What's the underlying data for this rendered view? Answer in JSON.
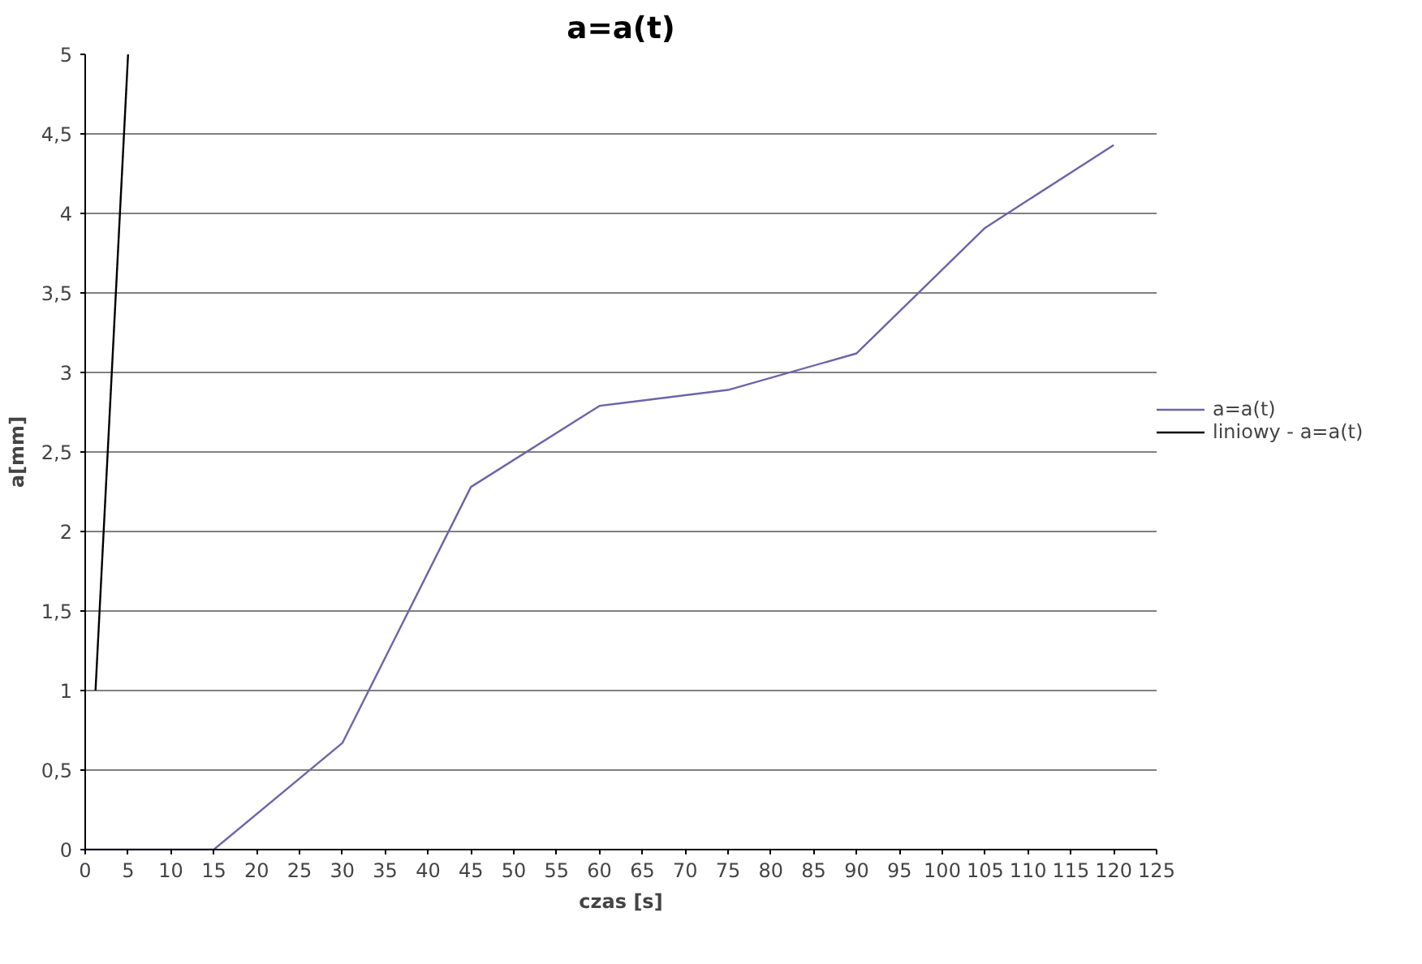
{
  "chart_data": {
    "type": "line",
    "title": "a=a(t)",
    "xlabel": "czas [s]",
    "ylabel": "a[mm]",
    "series": [
      {
        "name": "a=a(t)",
        "color": "#6c64a8",
        "x": [
          0,
          15,
          30,
          45,
          60,
          75,
          90,
          105,
          120
        ],
        "values": [
          0,
          0,
          0.67,
          2.28,
          2.79,
          2.89,
          3.12,
          3.91,
          4.43
        ]
      },
      {
        "name": "liniowy - a=a(t)",
        "color": "#000000",
        "x": [
          1.2,
          5
        ],
        "values": [
          1,
          5
        ]
      }
    ],
    "xlim": [
      0,
      125
    ],
    "xticks": [
      0,
      5,
      10,
      15,
      20,
      25,
      30,
      35,
      40,
      45,
      50,
      55,
      60,
      65,
      70,
      75,
      80,
      85,
      90,
      95,
      100,
      105,
      110,
      115,
      120,
      125
    ],
    "ylim": [
      0,
      5
    ],
    "yticks": [
      0,
      {
        "value": 0.5,
        "label": "0,5"
      },
      1,
      {
        "value": 1.5,
        "label": "1,5"
      },
      2,
      {
        "value": 2.5,
        "label": "2,5"
      },
      3,
      {
        "value": 3.5,
        "label": "3,5"
      },
      4,
      {
        "value": 4.5,
        "label": "4,5"
      },
      5
    ],
    "grid": "y",
    "legend": "right",
    "marker": "none",
    "line_style": "solid"
  }
}
